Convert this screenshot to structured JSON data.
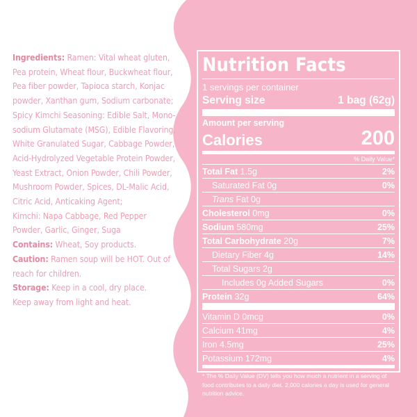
{
  "colors": {
    "panel_pink": "#f6b5c9",
    "text_pink": "#e8a0b4",
    "white": "#ffffff"
  },
  "ingredients_block": {
    "lines": [
      [
        {
          "t": "Ingredients:",
          "b": true
        },
        {
          "t": " Ramen: Vital wheat gluten,",
          "b": false
        }
      ],
      [
        {
          "t": "Pea protein, Wheat flour, Buckwheat flour,",
          "b": false
        }
      ],
      [
        {
          "t": "Pea fiber powder, Tapioca starch, Konjac",
          "b": false
        }
      ],
      [
        {
          "t": "powder, Xanthan gum, Sodium carbonate;",
          "b": false
        }
      ],
      [
        {
          "t": "Spicy Kimchi Seasoning: Edible Salt, Mono-",
          "b": false
        }
      ],
      [
        {
          "t": "sodium Glutamate (MSG), Edible Flavoring,",
          "b": false
        }
      ],
      [
        {
          "t": "White Granulated Sugar, Cabbage Powder,",
          "b": false
        }
      ],
      [
        {
          "t": "Acid-Hydrolyzed Vegetable Protein Powder,",
          "b": false
        }
      ],
      [
        {
          "t": "Yeast Extract, Onion Powder, Chili Powder,",
          "b": false
        }
      ],
      [
        {
          "t": "Mushroom Powder, Spices, DL-Malic Acid,",
          "b": false
        }
      ],
      [
        {
          "t": "Citric Acid, Anticaking Agent;",
          "b": false
        }
      ],
      [
        {
          "t": "Kimchi: Napa Cabbage, Red Pepper",
          "b": false
        }
      ],
      [
        {
          "t": "Powder, Garlic, Ginger, Suga",
          "b": false
        }
      ],
      [
        {
          "t": "Contains:",
          "b": true
        },
        {
          "t": "  Wheat, Soy products.",
          "b": false
        }
      ],
      [
        {
          "t": "Caution:",
          "b": true
        },
        {
          "t": "  Ramen soup will be HOT. Out of",
          "b": false
        }
      ],
      [
        {
          "t": "reach for children.",
          "b": false
        }
      ],
      [
        {
          "t": "Storage:",
          "b": true
        },
        {
          "t": " Keep in a cool, dry place.",
          "b": false
        }
      ],
      [
        {
          "t": " Keep away from light and heat.",
          "b": false
        }
      ]
    ]
  },
  "nutrition": {
    "title": "Nutrition Facts",
    "servings_per_container": "1 servings per container",
    "serving_size_label": "Serving size",
    "serving_size_value": "1 bag (62g)",
    "amount_per_serving": "Amount per serving",
    "calories_label": "Calories",
    "calories_value": "200",
    "dv_header": "% Daily Value*",
    "total_fat": {
      "label": "Total Fat",
      "amount": " 1.5g",
      "dv": "2%"
    },
    "saturated_fat": {
      "label": "Saturated Fat 0g",
      "dv": "0%"
    },
    "trans_fat": {
      "label_it": "Trans",
      "label_rest": " Fat 0g"
    },
    "cholesterol": {
      "label": "Cholesterol",
      "amount": " 0mg",
      "dv": "0%"
    },
    "sodium": {
      "label": "Sodium",
      "amount": " 580mg",
      "dv": "25%"
    },
    "total_carb": {
      "label": "Total Carbohydrate",
      "amount": " 20g",
      "dv": "7%"
    },
    "dietary_fiber": {
      "label": "Dietary Fiber 4g",
      "dv": "14%"
    },
    "total_sugars": {
      "label": "Total Sugars 2g"
    },
    "added_sugars": {
      "label": "Includes 0g Added Sugars",
      "dv": "0%"
    },
    "protein": {
      "label": "Protein",
      "amount": " 32g",
      "dv": "64%"
    },
    "vitamin_d": {
      "label": "Vitamin D 0mcg",
      "dv": "0%"
    },
    "calcium": {
      "label": "Calcium 41mg",
      "dv": "4%"
    },
    "iron": {
      "label": "Iron 4.5mg",
      "dv": "25%"
    },
    "potassium": {
      "label": "Potassium 172mg",
      "dv": "4%"
    },
    "footnote": "* The % Daily Value (DV) tells you how much a nutrient in a serving of food contributes to a daily diet. 2,000 calories a day is used for general nutrition advice."
  }
}
